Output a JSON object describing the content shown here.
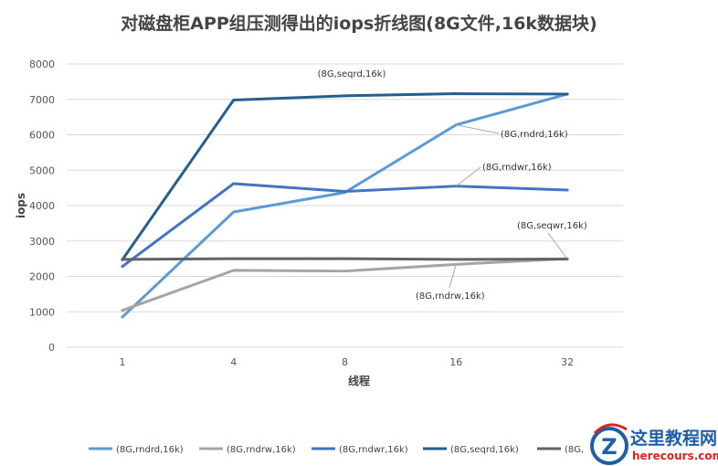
{
  "chart_data": {
    "type": "line",
    "title": "对磁盘柜APP组压测得出的iops折线图(8G文件,16k数据块)",
    "xlabel": "线程",
    "ylabel": "iops",
    "categories": [
      "1",
      "4",
      "8",
      "16",
      "32"
    ],
    "ylim": [
      0,
      8000
    ],
    "yticks": [
      "0",
      "1000",
      "2000",
      "3000",
      "4000",
      "5000",
      "6000",
      "7000",
      "8000"
    ],
    "grid": true,
    "legend_position": "bottom",
    "series": [
      {
        "name": "(8G,rndrd,16k)",
        "color": "#5b9bd5",
        "values": [
          850,
          3820,
          4370,
          6280,
          7150
        ]
      },
      {
        "name": "(8G,rndrw,16k)",
        "color": "#a5a5a5",
        "values": [
          1040,
          2170,
          2150,
          2340,
          2500
        ]
      },
      {
        "name": "(8G,rndwr,16k)",
        "color": "#4472c4",
        "values": [
          2280,
          4620,
          4400,
          4550,
          4440
        ]
      },
      {
        "name": "(8G,seqrd,16k)",
        "color": "#255e91",
        "values": [
          2470,
          6980,
          7100,
          7160,
          7150
        ]
      },
      {
        "name": "(8G,seqwr,16k)",
        "color": "#636363",
        "values": [
          2480,
          2500,
          2500,
          2480,
          2490
        ]
      }
    ],
    "annotations": [
      {
        "text": "(8G,seqrd,16k)",
        "series": 3
      },
      {
        "text": "(8G,rndrd,16k)",
        "series": 0
      },
      {
        "text": "(8G,rndwr,16k)",
        "series": 2
      },
      {
        "text": "(8G,seqwr,16k)",
        "series": 4
      },
      {
        "text": "(8G,rndrw,16k)",
        "series": 1
      }
    ],
    "legend_entries": [
      "(8G,rndrd,16k)",
      "(8G,rndrw,16k)",
      "(8G,rndwr,16k)",
      "(8G,seqrd,16k)",
      "(8G,"
    ]
  },
  "watermark": {
    "line1": "这里教程网",
    "line2": "herecours.com",
    "letter": "Z"
  }
}
